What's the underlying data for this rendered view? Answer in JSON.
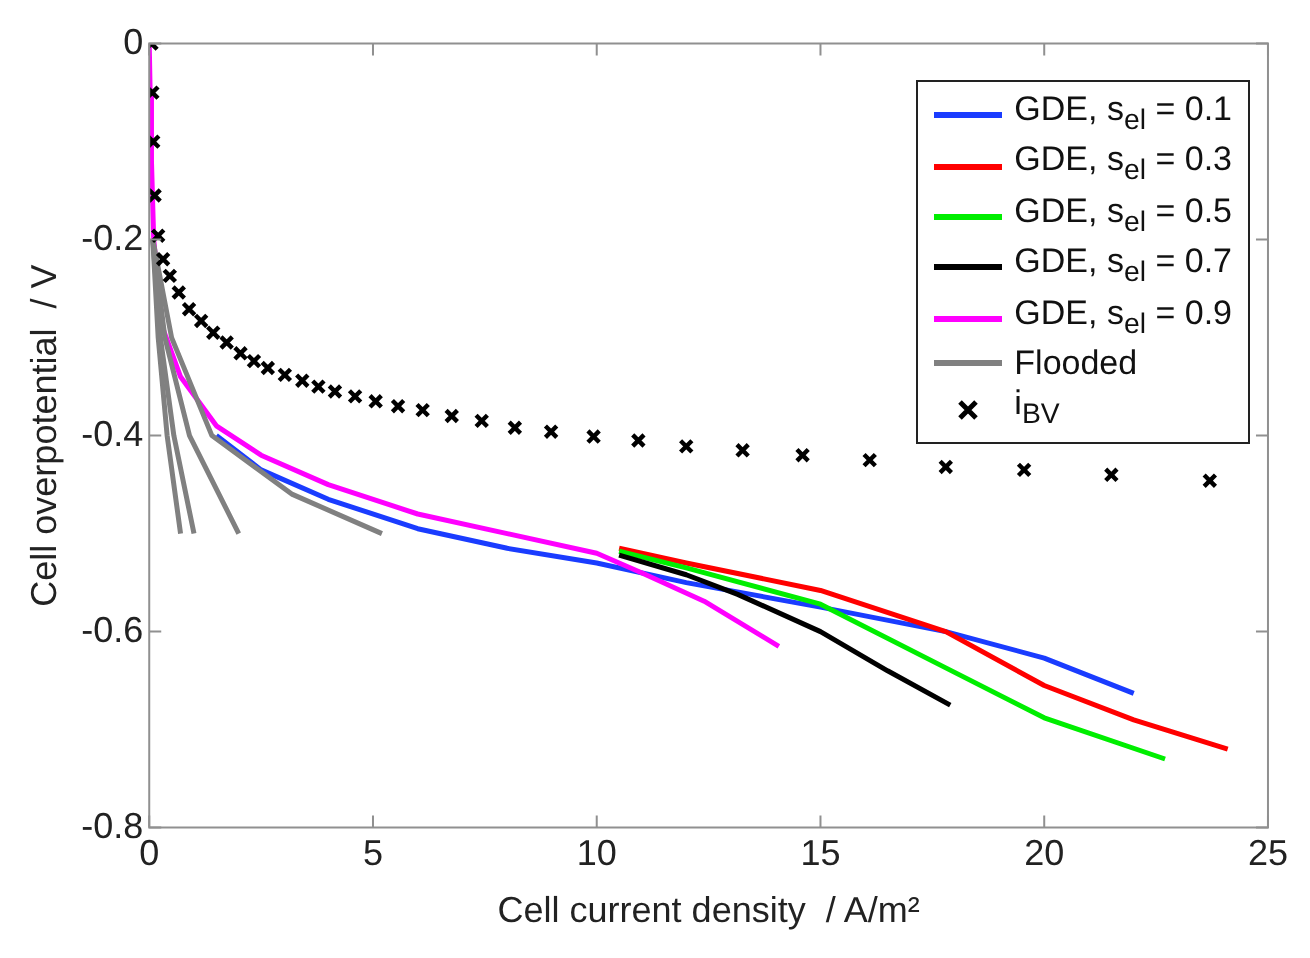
{
  "chart_data": {
    "type": "line",
    "xlabel": "Cell current density  / A/m²",
    "ylabel": "Cell overpotential  / V",
    "xlim": [
      0,
      25
    ],
    "xticks": [
      0,
      5,
      10,
      15,
      20,
      25
    ],
    "ylim": [
      -0.8,
      0
    ],
    "yticks": [
      -0.8,
      -0.6,
      -0.4,
      -0.2,
      0
    ],
    "grid": false,
    "legend": "top right",
    "marker": "none",
    "line_style": "solid",
    "series": [
      {
        "name": "GDE, s$_{el}$ = 0.1",
        "color": "#1a3cff",
        "x": [
          1.5,
          2.5,
          4,
          6,
          8,
          10,
          12,
          15,
          17.8,
          20,
          22
        ],
        "values": [
          -0.4,
          -0.435,
          -0.465,
          -0.495,
          -0.515,
          -0.53,
          -0.55,
          -0.575,
          -0.6,
          -0.627,
          -0.663
        ]
      },
      {
        "name": "GDE, s$_{el}$ = 0.3",
        "color": "#ff0000",
        "x": [
          10.5,
          12,
          15,
          17.8,
          20,
          22,
          24.1
        ],
        "values": [
          -0.515,
          -0.53,
          -0.558,
          -0.6,
          -0.655,
          -0.69,
          -0.72
        ]
      },
      {
        "name": "GDE, s$_{el}$ = 0.5",
        "color": "#00ee00",
        "x": [
          10.5,
          12,
          15,
          17.8,
          20,
          22.7
        ],
        "values": [
          -0.518,
          -0.535,
          -0.572,
          -0.637,
          -0.688,
          -0.73
        ]
      },
      {
        "name": "GDE, s$_{el}$ = 0.7",
        "color": "#000000",
        "x": [
          10.5,
          12,
          13.15,
          15,
          16.5,
          17.9
        ],
        "values": [
          -0.522,
          -0.542,
          -0.562,
          -0.6,
          -0.64,
          -0.675
        ]
      },
      {
        "name": "GDE, s$_{el}$ = 0.9",
        "color": "#ff00ff",
        "x": [
          0,
          0.02,
          0.05,
          0.1,
          0.3,
          0.7,
          1.5,
          2.5,
          4,
          6,
          8,
          10,
          11,
          12.4,
          14.07
        ],
        "values": [
          0,
          -0.05,
          -0.12,
          -0.2,
          -0.29,
          -0.34,
          -0.39,
          -0.42,
          -0.45,
          -0.48,
          -0.5,
          -0.52,
          -0.54,
          -0.569,
          -0.615
        ]
      },
      {
        "name": "Flooded",
        "color": "#808080",
        "x": [
          0.08,
          0.2,
          0.4,
          0.7
        ],
        "values": [
          -0.2,
          -0.3,
          -0.4,
          -0.5
        ]
      },
      {
        "color": "#808080",
        "x": [
          0.08,
          0.25,
          0.55,
          1.0
        ],
        "values": [
          -0.2,
          -0.3,
          -0.4,
          -0.5
        ]
      },
      {
        "color": "#808080",
        "x": [
          0.08,
          0.35,
          0.9,
          2.0
        ],
        "values": [
          -0.2,
          -0.3,
          -0.4,
          -0.5
        ]
      },
      {
        "color": "#808080",
        "x": [
          0.08,
          0.5,
          1.4,
          3.2,
          5.2
        ],
        "values": [
          -0.2,
          -0.3,
          -0.4,
          -0.46,
          -0.5
        ]
      },
      {
        "name": "i$_{BV}$",
        "type": "scatter",
        "marker": "cross",
        "color": "#000000",
        "x": [
          0.05,
          0.07,
          0.09,
          0.12,
          0.2,
          0.31,
          0.46,
          0.66,
          0.89,
          1.16,
          1.43,
          1.73,
          2.04,
          2.34,
          2.65,
          3.03,
          3.42,
          3.78,
          4.15,
          4.6,
          5.06,
          5.56,
          6.11,
          6.76,
          7.43,
          8.17,
          8.98,
          9.93,
          10.93,
          12.0,
          13.26,
          14.6,
          16.1,
          17.8,
          19.55,
          21.5,
          23.7
        ],
        "values": [
          0,
          -0.05,
          -0.1,
          -0.155,
          -0.196,
          -0.22,
          -0.237,
          -0.254,
          -0.271,
          -0.283,
          -0.295,
          -0.305,
          -0.316,
          -0.324,
          -0.331,
          -0.338,
          -0.344,
          -0.35,
          -0.355,
          -0.36,
          -0.365,
          -0.37,
          -0.374,
          -0.38,
          -0.385,
          -0.392,
          -0.396,
          -0.401,
          -0.405,
          -0.411,
          -0.415,
          -0.42,
          -0.425,
          -0.432,
          -0.435,
          -0.44,
          -0.446
        ]
      }
    ]
  }
}
